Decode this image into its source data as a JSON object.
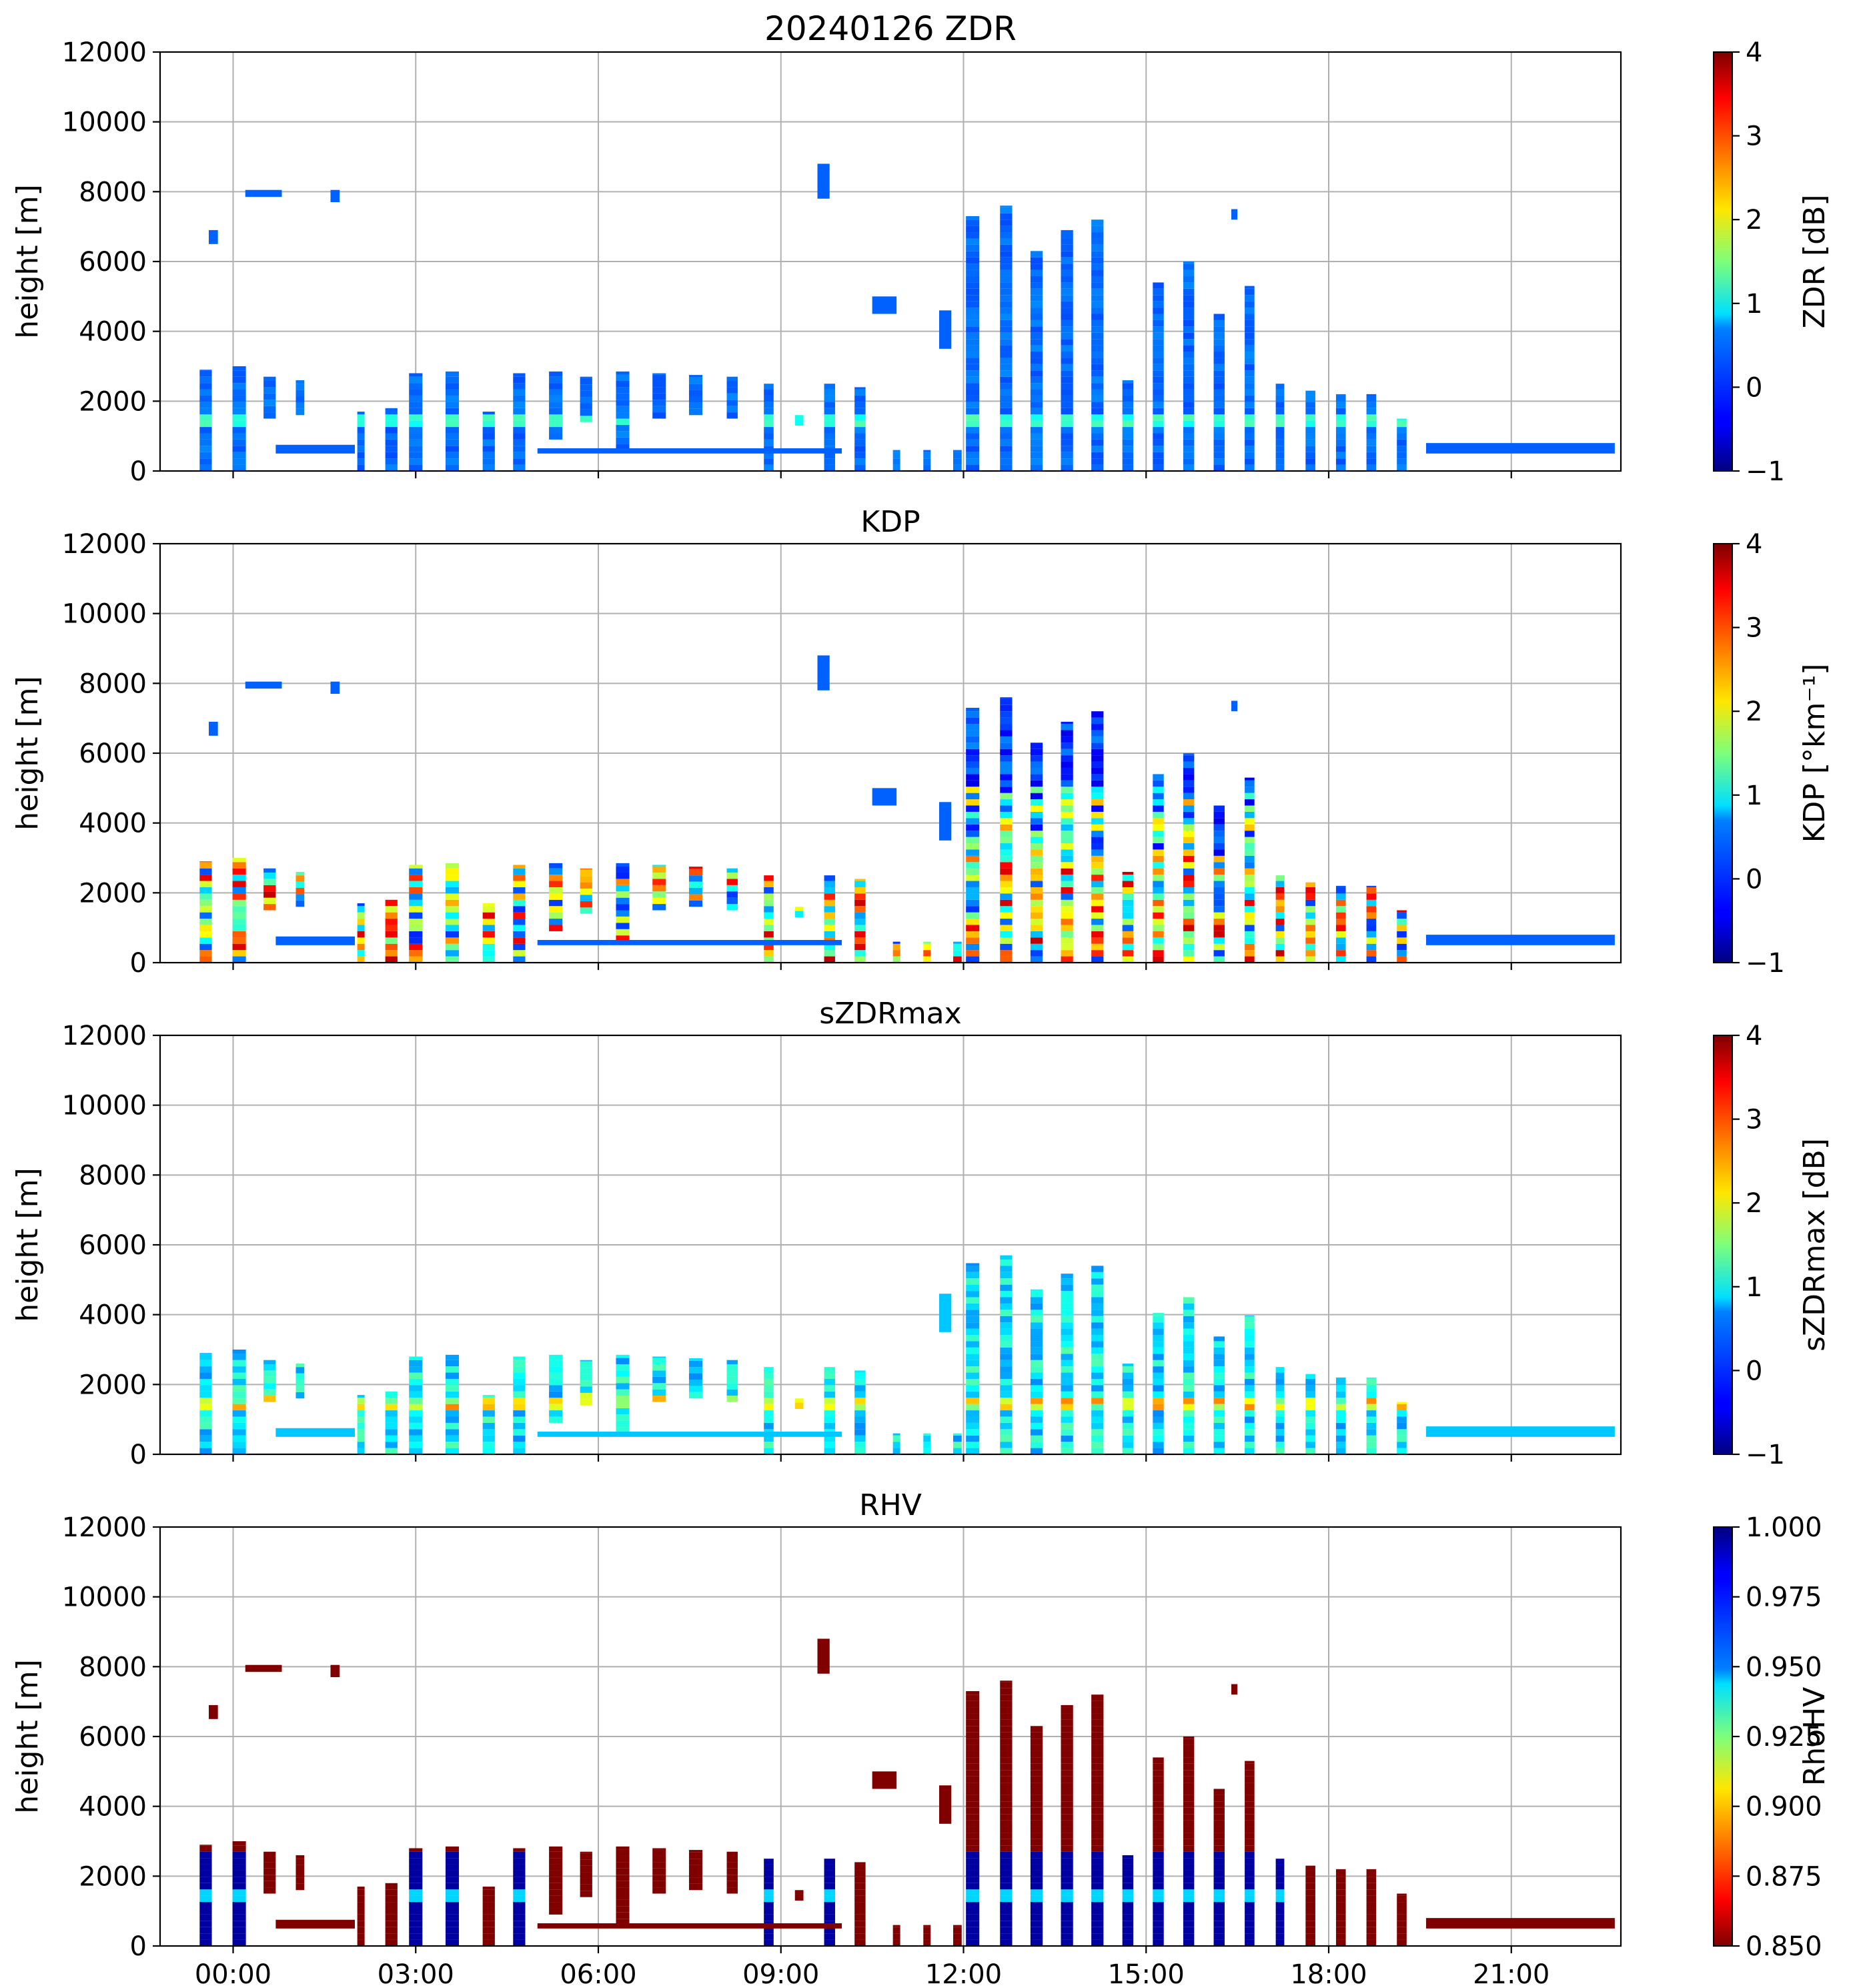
{
  "figure_title": "20240126 ZDR",
  "chart_data": [
    {
      "type": "heatmap",
      "title": "20240126 ZDR",
      "variable": "ZDR",
      "xlabel": "",
      "ylabel": "height [m]",
      "ylim": [
        0,
        12000
      ],
      "yticks": [
        "0",
        "2000",
        "4000",
        "6000",
        "8000",
        "10000",
        "12000"
      ],
      "xlim_hours": [
        -1.2,
        22.8
      ],
      "xticks": [
        "00:00",
        "03:00",
        "06:00",
        "09:00",
        "12:00",
        "15:00",
        "18:00",
        "21:00"
      ],
      "show_xtick_labels": false,
      "grid": true,
      "colorbar": {
        "label": "ZDR [dB]",
        "cmap": "jet",
        "range": [
          -1,
          4
        ],
        "ticks": [
          "−1",
          "0",
          "1",
          "2",
          "3",
          "4"
        ]
      }
    },
    {
      "type": "heatmap",
      "title": "KDP",
      "variable": "KDP",
      "xlabel": "",
      "ylabel": "height [m]",
      "ylim": [
        0,
        12000
      ],
      "yticks": [
        "0",
        "2000",
        "4000",
        "6000",
        "8000",
        "10000",
        "12000"
      ],
      "xlim_hours": [
        -1.2,
        22.8
      ],
      "xticks": [
        "00:00",
        "03:00",
        "06:00",
        "09:00",
        "12:00",
        "15:00",
        "18:00",
        "21:00"
      ],
      "show_xtick_labels": false,
      "grid": true,
      "colorbar": {
        "label": "KDP [°km⁻¹]",
        "cmap": "jet",
        "range": [
          -1,
          4
        ],
        "ticks": [
          "−1",
          "0",
          "1",
          "2",
          "3",
          "4"
        ]
      }
    },
    {
      "type": "heatmap",
      "title": "sZDRmax",
      "variable": "sZDRmax",
      "xlabel": "",
      "ylabel": "height [m]",
      "ylim": [
        0,
        12000
      ],
      "yticks": [
        "0",
        "2000",
        "4000",
        "6000",
        "8000",
        "10000",
        "12000"
      ],
      "xlim_hours": [
        -1.2,
        22.8
      ],
      "xticks": [
        "00:00",
        "03:00",
        "06:00",
        "09:00",
        "12:00",
        "15:00",
        "18:00",
        "21:00"
      ],
      "show_xtick_labels": false,
      "grid": true,
      "colorbar": {
        "label": "sZDRmax [dB]",
        "cmap": "jet",
        "range": [
          -1,
          4
        ],
        "ticks": [
          "−1",
          "0",
          "1",
          "2",
          "3",
          "4"
        ]
      }
    },
    {
      "type": "heatmap",
      "title": "RHV",
      "variable": "RHV",
      "xlabel": "",
      "ylabel": "height [m]",
      "ylim": [
        0,
        12000
      ],
      "yticks": [
        "0",
        "2000",
        "4000",
        "6000",
        "8000",
        "10000",
        "12000"
      ],
      "xlim_hours": [
        -1.2,
        22.8
      ],
      "xticks": [
        "00:00",
        "03:00",
        "06:00",
        "09:00",
        "12:00",
        "15:00",
        "18:00",
        "21:00"
      ],
      "show_xtick_labels": true,
      "grid": true,
      "colorbar": {
        "label": "RhoHV",
        "cmap": "jet_r",
        "range": [
          0.85,
          1.0
        ],
        "ticks": [
          "0.850",
          "0.875",
          "0.900",
          "0.925",
          "0.950",
          "0.975",
          "1.000"
        ]
      }
    }
  ],
  "scans": [
    {
      "t": -0.45,
      "w": 0.2,
      "top": 2900,
      "base": 0
    },
    {
      "t": 0.1,
      "w": 0.22,
      "top": 3000,
      "base": 0
    },
    {
      "t": 0.6,
      "w": 0.2,
      "top": 2700,
      "base": 1500
    },
    {
      "t": 1.1,
      "w": 0.14,
      "top": 2600,
      "base": 1600
    },
    {
      "t": 2.1,
      "w": 0.12,
      "top": 1700,
      "base": 0
    },
    {
      "t": 2.6,
      "w": 0.2,
      "top": 1800,
      "base": 0
    },
    {
      "t": 3.0,
      "w": 0.22,
      "top": 2800,
      "base": 0
    },
    {
      "t": 3.6,
      "w": 0.22,
      "top": 2850,
      "base": 0
    },
    {
      "t": 4.2,
      "w": 0.2,
      "top": 1700,
      "base": 0
    },
    {
      "t": 4.7,
      "w": 0.2,
      "top": 2800,
      "base": 0
    },
    {
      "t": 5.3,
      "w": 0.22,
      "top": 2850,
      "base": 900
    },
    {
      "t": 5.8,
      "w": 0.2,
      "top": 2700,
      "base": 1400
    },
    {
      "t": 6.4,
      "w": 0.22,
      "top": 2850,
      "base": 600
    },
    {
      "t": 7.0,
      "w": 0.22,
      "top": 2800,
      "base": 1500
    },
    {
      "t": 7.6,
      "w": 0.22,
      "top": 2750,
      "base": 1600
    },
    {
      "t": 8.2,
      "w": 0.18,
      "top": 2700,
      "base": 1500
    },
    {
      "t": 8.8,
      "w": 0.16,
      "top": 2500,
      "base": 0
    },
    {
      "t": 9.3,
      "w": 0.14,
      "top": 1600,
      "base": 1300
    },
    {
      "t": 9.8,
      "w": 0.18,
      "top": 2500,
      "base": 0
    },
    {
      "t": 10.3,
      "w": 0.18,
      "top": 2400,
      "base": 0
    },
    {
      "t": 10.9,
      "w": 0.12,
      "top": 600,
      "base": 0
    },
    {
      "t": 11.4,
      "w": 0.12,
      "top": 600,
      "base": 0
    },
    {
      "t": 11.9,
      "w": 0.14,
      "top": 600,
      "base": 0
    },
    {
      "t": 12.15,
      "w": 0.22,
      "top": 7300,
      "base": 0
    },
    {
      "t": 12.7,
      "w": 0.2,
      "top": 7600,
      "base": 0
    },
    {
      "t": 13.2,
      "w": 0.2,
      "top": 6300,
      "base": 0
    },
    {
      "t": 13.7,
      "w": 0.2,
      "top": 6900,
      "base": 0
    },
    {
      "t": 14.2,
      "w": 0.2,
      "top": 7200,
      "base": 0
    },
    {
      "t": 14.7,
      "w": 0.18,
      "top": 2600,
      "base": 0
    },
    {
      "t": 15.2,
      "w": 0.18,
      "top": 5400,
      "base": 0
    },
    {
      "t": 15.7,
      "w": 0.18,
      "top": 6000,
      "base": 0
    },
    {
      "t": 16.2,
      "w": 0.18,
      "top": 4500,
      "base": 0
    },
    {
      "t": 16.7,
      "w": 0.16,
      "top": 5300,
      "base": 0
    },
    {
      "t": 17.2,
      "w": 0.14,
      "top": 2500,
      "base": 0
    },
    {
      "t": 17.7,
      "w": 0.16,
      "top": 2300,
      "base": 0
    },
    {
      "t": 18.2,
      "w": 0.16,
      "top": 2200,
      "base": 0
    },
    {
      "t": 18.7,
      "w": 0.16,
      "top": 2200,
      "base": 0
    },
    {
      "t": 19.2,
      "w": 0.16,
      "top": 1500,
      "base": 0
    }
  ],
  "patches": [
    {
      "t0": -0.4,
      "t1": -0.25,
      "h0": 6500,
      "h1": 6900
    },
    {
      "t0": 0.2,
      "t1": 0.8,
      "h0": 7850,
      "h1": 8050
    },
    {
      "t0": 1.6,
      "t1": 1.75,
      "h0": 7700,
      "h1": 8050
    },
    {
      "t0": 9.6,
      "t1": 9.8,
      "h0": 7800,
      "h1": 8800
    },
    {
      "t0": 10.5,
      "t1": 10.9,
      "h0": 4500,
      "h1": 5000
    },
    {
      "t0": 11.6,
      "t1": 11.8,
      "h0": 3500,
      "h1": 4600
    },
    {
      "t0": 16.4,
      "t1": 16.5,
      "h0": 7200,
      "h1": 7500
    },
    {
      "t0": 19.6,
      "t1": 22.7,
      "h0": 500,
      "h1": 800
    },
    {
      "t0": 0.7,
      "t1": 2.0,
      "h0": 500,
      "h1": 750
    },
    {
      "t0": 5.0,
      "t1": 10.0,
      "h0": 500,
      "h1": 650
    }
  ]
}
